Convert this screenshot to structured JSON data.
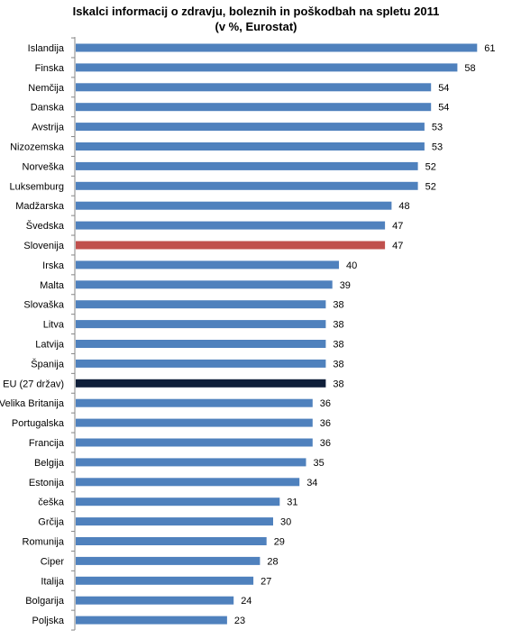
{
  "chart_data": {
    "type": "bar",
    "orientation": "horizontal",
    "title": "Iskalci informacij o zdravju, boleznih in poškodbah na spletu 2011",
    "subtitle": "(v %,  Eurostat)",
    "categories": [
      "Islandija",
      "Finska",
      "Nemčija",
      "Danska",
      "Avstrija",
      "Nizozemska",
      "Norveška",
      "Luksemburg",
      "Madžarska",
      "Švedska",
      "Slovenija",
      "Irska",
      "Malta",
      "Slovaška",
      "Litva",
      "Latvija",
      "Španija",
      "EU (27 držav)",
      "Velika Britanija",
      "Portugalska",
      "Francija",
      "Belgija",
      "Estonija",
      "češka",
      "Grčija",
      "Romunija",
      "Ciper",
      "Italija",
      "Bolgarija",
      "Poljska"
    ],
    "values": [
      61,
      58,
      54,
      54,
      53,
      53,
      52,
      52,
      48,
      47,
      47,
      40,
      39,
      38,
      38,
      38,
      38,
      38,
      36,
      36,
      36,
      35,
      34,
      31,
      30,
      29,
      28,
      27,
      24,
      23
    ],
    "xlim": [
      0,
      64
    ],
    "grid": false,
    "colors": {
      "default": "#4f81bd",
      "highlight": "#c0504d",
      "eu": "#0f1f3a"
    },
    "highlight_categories": {
      "Slovenija": "highlight",
      "EU (27 držav)": "eu"
    }
  }
}
